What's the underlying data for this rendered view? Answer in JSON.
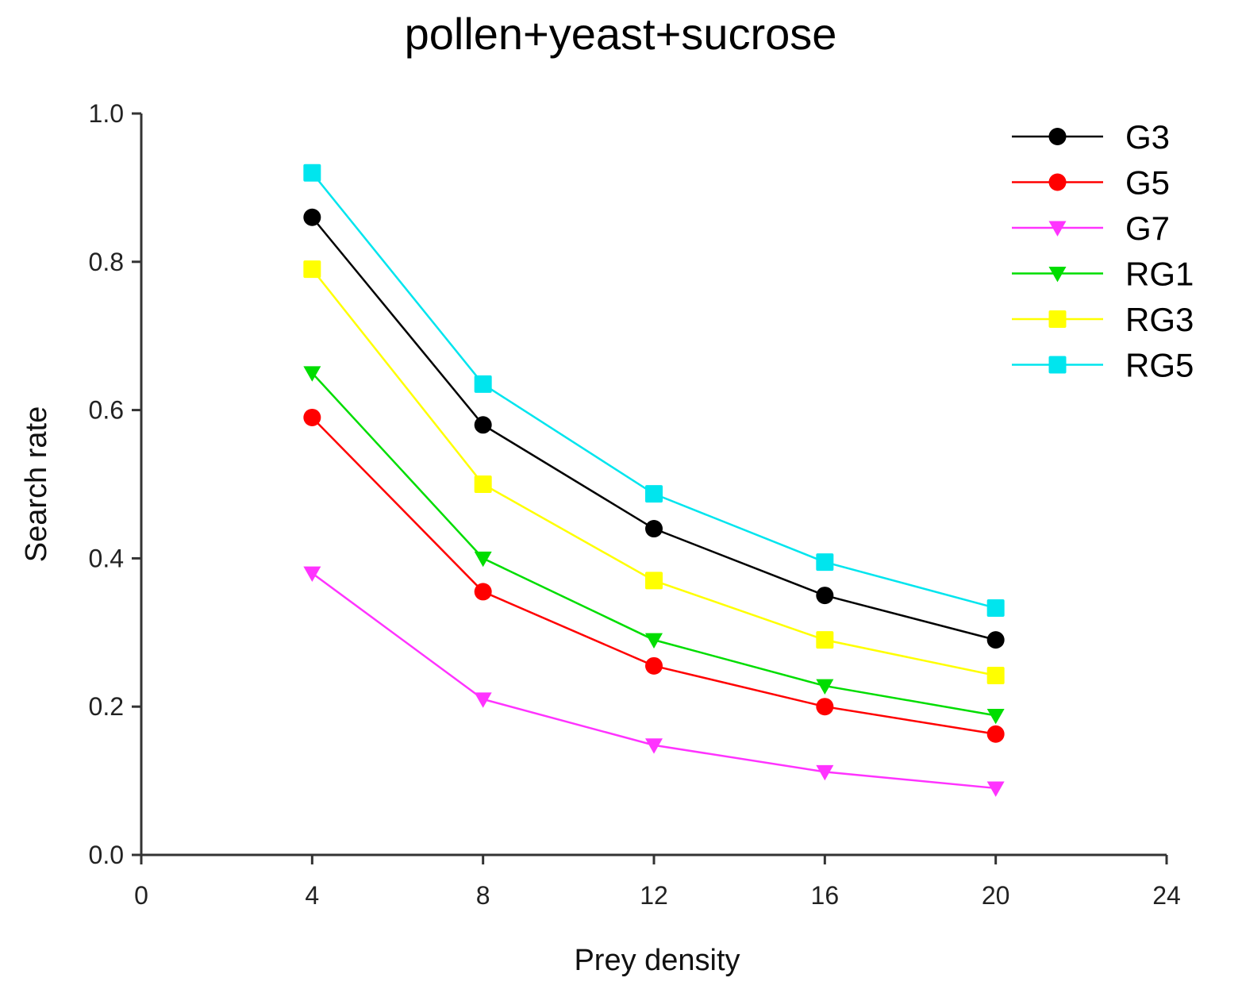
{
  "chart_data": {
    "type": "line",
    "title": "pollen+yeast+sucrose",
    "xlabel": "Prey density",
    "ylabel": "Search rate",
    "xlim": [
      0,
      24
    ],
    "ylim": [
      0.0,
      1.0
    ],
    "x_ticks": [
      "0",
      "4",
      "8",
      "12",
      "16",
      "20",
      "24"
    ],
    "y_ticks": [
      "0.0",
      "0.2",
      "0.4",
      "0.6",
      "0.8",
      "1.0"
    ],
    "x": [
      4,
      8,
      12,
      16,
      20
    ],
    "legend_position": "top-right",
    "series": [
      {
        "name": "G3",
        "color": "#000000",
        "marker": "circle",
        "values": [
          0.86,
          0.58,
          0.44,
          0.35,
          0.29
        ]
      },
      {
        "name": "G5",
        "color": "#ff0000",
        "marker": "circle",
        "values": [
          0.59,
          0.355,
          0.255,
          0.2,
          0.163
        ]
      },
      {
        "name": "G7",
        "color": "#ff33ff",
        "marker": "triangle-down",
        "values": [
          0.38,
          0.21,
          0.148,
          0.112,
          0.09
        ]
      },
      {
        "name": "RG1",
        "color": "#00dd00",
        "marker": "triangle-down",
        "values": [
          0.65,
          0.4,
          0.29,
          0.228,
          0.188
        ]
      },
      {
        "name": "RG3",
        "color": "#ffff00",
        "marker": "square",
        "values": [
          0.79,
          0.5,
          0.37,
          0.29,
          0.242
        ]
      },
      {
        "name": "RG5",
        "color": "#00e5ee",
        "marker": "square",
        "values": [
          0.92,
          0.635,
          0.487,
          0.395,
          0.333
        ]
      }
    ]
  }
}
